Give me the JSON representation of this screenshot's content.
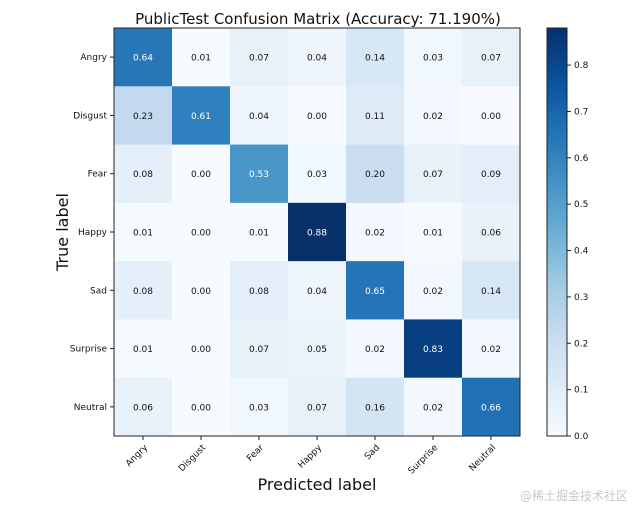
{
  "chart_data": {
    "type": "heatmap",
    "title": "PublicTest Confusion Matrix (Accuracy: 71.190%)",
    "xlabel": "Predicted label",
    "ylabel": "True label",
    "x_categories": [
      "Angry",
      "Disgust",
      "Fear",
      "Happy",
      "Sad",
      "Surprise",
      "Neutral"
    ],
    "y_categories": [
      "Angry",
      "Disgust",
      "Fear",
      "Happy",
      "Sad",
      "Surprise",
      "Neutral"
    ],
    "matrix": [
      [
        0.64,
        0.01,
        0.07,
        0.04,
        0.14,
        0.03,
        0.07
      ],
      [
        0.23,
        0.61,
        0.04,
        0.0,
        0.11,
        0.02,
        0.0
      ],
      [
        0.08,
        0.0,
        0.53,
        0.03,
        0.2,
        0.07,
        0.09
      ],
      [
        0.01,
        0.0,
        0.01,
        0.88,
        0.02,
        0.01,
        0.06
      ],
      [
        0.08,
        0.0,
        0.08,
        0.04,
        0.65,
        0.02,
        0.14
      ],
      [
        0.01,
        0.0,
        0.07,
        0.05,
        0.02,
        0.83,
        0.02
      ],
      [
        0.06,
        0.0,
        0.03,
        0.07,
        0.16,
        0.02,
        0.66
      ]
    ],
    "colormap": "Blues",
    "vmin": 0.0,
    "vmax": 0.88,
    "colorbar_ticks": [
      0.0,
      0.1,
      0.2,
      0.3,
      0.4,
      0.5,
      0.6,
      0.7,
      0.8
    ]
  },
  "watermark": "@稀土掘金技术社区"
}
